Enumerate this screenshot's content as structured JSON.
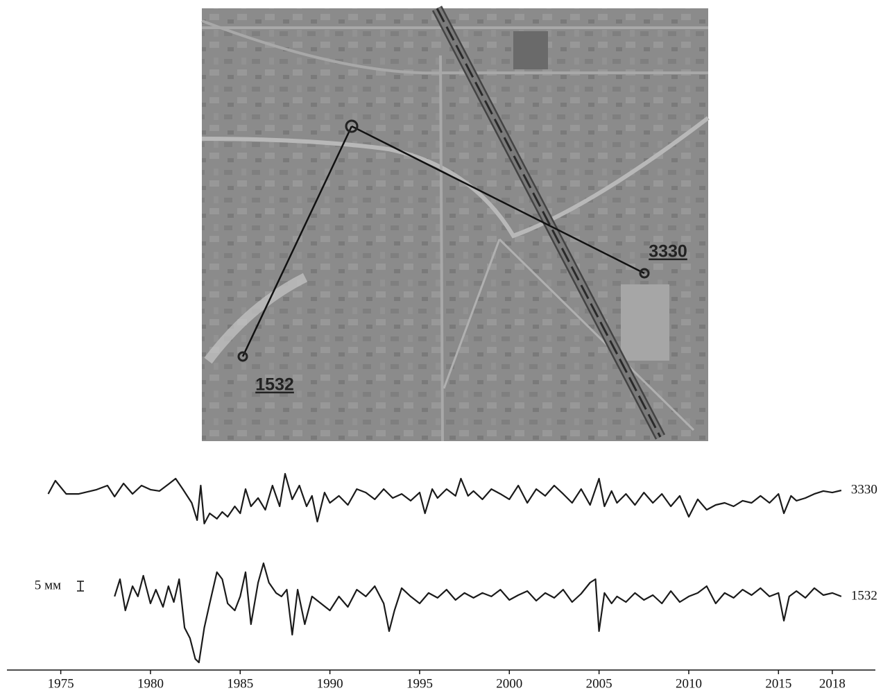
{
  "map": {
    "labels": [
      "3330",
      "1532"
    ]
  },
  "chart_data": {
    "type": "line",
    "xlim": [
      1972,
      2020.4
    ],
    "ylim": [
      0,
      110
    ],
    "xticks": [
      1975,
      1980,
      1985,
      1990,
      1995,
      2000,
      2005,
      2010,
      2015,
      2018
    ],
    "scale_bar": {
      "label": "5 мм",
      "value": 5
    },
    "series": [
      {
        "name": "3330",
        "color": "#1a1a1a",
        "x": [
          1974.3,
          1974.7,
          1975.3,
          1976,
          1977,
          1977.6,
          1978,
          1978.5,
          1979,
          1979.5,
          1980,
          1980.5,
          1981,
          1981.4,
          1981.8,
          1982.3,
          1982.6,
          1982.8,
          1983,
          1983.3,
          1983.7,
          1984,
          1984.3,
          1984.7,
          1985,
          1985.3,
          1985.6,
          1986,
          1986.4,
          1986.8,
          1987.2,
          1987.5,
          1987.9,
          1988.3,
          1988.7,
          1989,
          1989.3,
          1989.7,
          1990,
          1990.5,
          1991,
          1991.5,
          1992,
          1992.5,
          1993,
          1993.5,
          1994,
          1994.5,
          1995,
          1995.3,
          1995.7,
          1996,
          1996.5,
          1997,
          1997.3,
          1997.7,
          1998,
          1998.5,
          1999,
          1999.5,
          2000,
          2000.5,
          2001,
          2001.5,
          2002,
          2002.5,
          2003,
          2003.5,
          2004,
          2004.5,
          2005,
          2005.3,
          2005.7,
          2006,
          2006.5,
          2007,
          2007.5,
          2008,
          2008.5,
          2009,
          2009.5,
          2010,
          2010.5,
          2011,
          2011.5,
          2012,
          2012.5,
          2013,
          2013.5,
          2014,
          2014.5,
          2015,
          2015.3,
          2015.7,
          2016,
          2016.5,
          2017,
          2017.5,
          2018,
          2018.5
        ],
        "values": [
          91.4,
          98.2,
          91.4,
          91.4,
          93.6,
          95.7,
          90,
          96.8,
          91.4,
          95.7,
          93.6,
          92.9,
          96.4,
          99.3,
          93.9,
          86.8,
          77.9,
          95.7,
          76.1,
          81.4,
          78.6,
          82.1,
          79.6,
          85,
          81.4,
          93.9,
          85,
          89.3,
          83.2,
          95.7,
          85,
          101.8,
          88.6,
          95.7,
          85,
          90.4,
          77.1,
          92.1,
          86.8,
          90.4,
          85.7,
          93.9,
          92.1,
          88.6,
          93.9,
          89.3,
          91.4,
          87.9,
          92.1,
          81.4,
          93.9,
          89.3,
          93.9,
          90.4,
          99.3,
          90.4,
          92.9,
          88.6,
          93.9,
          91.4,
          88.6,
          95.7,
          86.8,
          93.9,
          90.4,
          95.7,
          91.4,
          86.8,
          93.9,
          85.7,
          99.3,
          85,
          92.9,
          86.8,
          91.4,
          85.7,
          92.1,
          86.8,
          91.4,
          85,
          90.4,
          79.6,
          88.6,
          83.2,
          85.7,
          86.8,
          85,
          87.9,
          86.8,
          90.4,
          86.8,
          91.4,
          81.4,
          90.4,
          87.9,
          89.3,
          91.4,
          92.9,
          92.1,
          93.2
        ]
      },
      {
        "name": "1532",
        "color": "#1a1a1a",
        "x": [
          1978,
          1978.3,
          1978.6,
          1979,
          1979.3,
          1979.6,
          1980,
          1980.3,
          1980.7,
          1981,
          1981.3,
          1981.6,
          1981.9,
          1982.2,
          1982.5,
          1982.7,
          1983,
          1983.3,
          1983.7,
          1984,
          1984.3,
          1984.7,
          1985,
          1985.3,
          1985.6,
          1986,
          1986.3,
          1986.6,
          1987,
          1987.3,
          1987.6,
          1987.9,
          1988.2,
          1988.6,
          1989,
          1989.5,
          1990,
          1990.5,
          1991,
          1991.5,
          1992,
          1992.5,
          1993,
          1993.3,
          1993.6,
          1994,
          1994.5,
          1995,
          1995.5,
          1996,
          1996.5,
          1997,
          1997.5,
          1998,
          1998.5,
          1999,
          1999.5,
          2000,
          2000.5,
          2001,
          2001.5,
          2002,
          2002.5,
          2003,
          2003.5,
          2004,
          2004.5,
          2004.8,
          2005,
          2005.3,
          2005.7,
          2006,
          2006.5,
          2007,
          2007.5,
          2008,
          2008.5,
          2009,
          2009.5,
          2010,
          2010.5,
          2011,
          2011.5,
          2012,
          2012.5,
          2013,
          2013.5,
          2014,
          2014.5,
          2015,
          2015.3,
          2015.6,
          2016,
          2016.5,
          2017,
          2017.5,
          2018,
          2018.5
        ],
        "values": [
          38.6,
          47.5,
          31.4,
          43.9,
          38.6,
          49.3,
          35,
          42.1,
          33.2,
          43.9,
          35.7,
          47.5,
          22.5,
          17.1,
          6.4,
          4.6,
          22.5,
          35,
          51.1,
          47.5,
          35,
          31.4,
          38.6,
          51.1,
          24.3,
          45.7,
          55.7,
          45.7,
          40.4,
          38.6,
          42.1,
          18.9,
          42.1,
          24.3,
          38.6,
          35,
          31.4,
          38.6,
          33.2,
          42.1,
          38.6,
          43.9,
          35,
          20.7,
          31.4,
          42.9,
          38.6,
          35,
          40.4,
          37.9,
          42.1,
          36.8,
          40.4,
          37.9,
          40.4,
          38.6,
          42.1,
          36.8,
          39.3,
          41.4,
          36.4,
          40.4,
          37.9,
          42.1,
          35.7,
          40,
          45.7,
          47.5,
          20.7,
          40.4,
          35,
          38.6,
          35.7,
          40.4,
          36.8,
          39.3,
          35,
          41.4,
          35.7,
          38.6,
          40.4,
          43.9,
          35,
          40.4,
          37.9,
          42.1,
          39.3,
          42.9,
          38.6,
          40.4,
          26.1,
          38.6,
          41.4,
          37.9,
          42.9,
          39.3,
          40.4,
          38.6
        ]
      }
    ]
  }
}
